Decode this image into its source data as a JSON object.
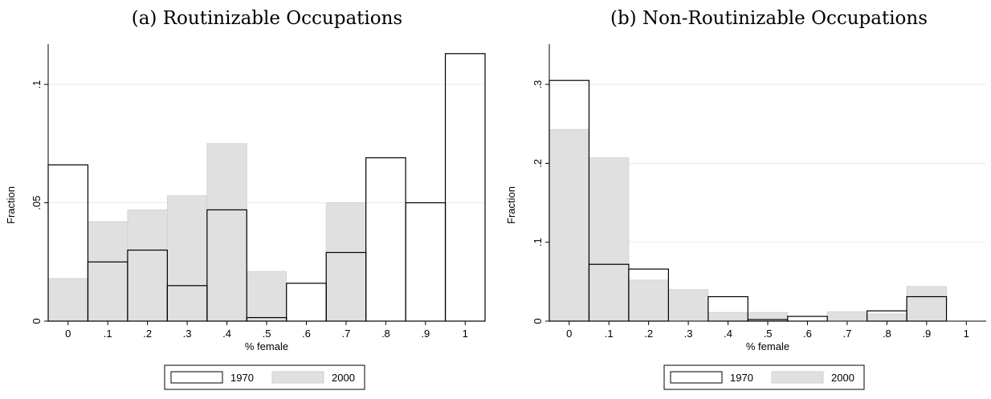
{
  "chart_data": [
    {
      "type": "bar",
      "title": "(a) Routinizable Occupations",
      "xlabel": "% female",
      "ylabel": "Fraction",
      "xlim": [
        -0.05,
        1.05
      ],
      "ylim": [
        0,
        0.1
      ],
      "x_ticks": [
        "0",
        ".1",
        ".2",
        ".3",
        ".4",
        ".5",
        ".6",
        ".7",
        ".8",
        ".9",
        "1"
      ],
      "y_ticks": [
        {
          "value": 0,
          "label": "0"
        },
        {
          "value": 0.05,
          "label": ".05"
        },
        {
          "value": 0.1,
          "label": ".1"
        }
      ],
      "categories": [
        "0",
        ".1",
        ".2",
        ".3",
        ".4",
        ".5",
        ".6",
        ".7",
        ".8",
        ".9",
        "1"
      ],
      "series": [
        {
          "name": "1970",
          "color": "#ffffff",
          "values": [
            0.066,
            0.025,
            0.03,
            0.015,
            0.047,
            0.0015,
            0.016,
            0.029,
            0.069,
            0.05,
            0.113
          ]
        },
        {
          "name": "2000",
          "color": "#e0e0e0",
          "values": [
            0.018,
            0.042,
            0.047,
            0.053,
            0.075,
            0.021,
            0.0,
            0.05,
            0.0,
            0.0,
            0.0
          ]
        }
      ],
      "grid": true,
      "legend": "bottom"
    },
    {
      "type": "bar",
      "title": "(b) Non-Routinizable Occupations",
      "xlabel": "% female",
      "ylabel": "Fraction",
      "xlim": [
        -0.05,
        1.05
      ],
      "ylim": [
        0,
        0.3
      ],
      "x_ticks": [
        "0",
        ".1",
        ".2",
        ".3",
        ".4",
        ".5",
        ".6",
        ".7",
        ".8",
        ".9",
        "1"
      ],
      "y_ticks": [
        {
          "value": 0,
          "label": "0"
        },
        {
          "value": 0.1,
          "label": ".1"
        },
        {
          "value": 0.2,
          "label": ".2"
        },
        {
          "value": 0.3,
          "label": ".3"
        }
      ],
      "categories": [
        "0",
        ".1",
        ".2",
        ".3",
        ".4",
        ".5",
        ".6",
        ".7",
        ".8",
        ".9",
        "1"
      ],
      "series": [
        {
          "name": "1970",
          "color": "#ffffff",
          "values": [
            0.305,
            0.072,
            0.066,
            0.0,
            0.031,
            0.002,
            0.006,
            0.0,
            0.013,
            0.031,
            0.0
          ]
        },
        {
          "name": "2000",
          "color": "#e0e0e0",
          "values": [
            0.243,
            0.207,
            0.052,
            0.04,
            0.011,
            0.011,
            0.0,
            0.012,
            0.009,
            0.044,
            0.0
          ]
        }
      ],
      "grid": true,
      "legend": "bottom"
    }
  ]
}
